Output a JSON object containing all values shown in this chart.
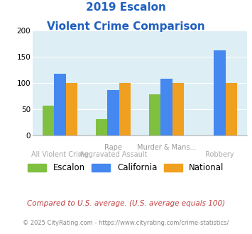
{
  "title_line1": "2019 Escalon",
  "title_line2": "Violent Crime Comparison",
  "top_labels": [
    "",
    "Rape",
    "Murder & Mans...",
    ""
  ],
  "bot_labels": [
    "All Violent Crime",
    "Aggravated Assault",
    "",
    "Robbery"
  ],
  "escalon": [
    57,
    32,
    78,
    0
  ],
  "california": [
    118,
    87,
    108,
    162
  ],
  "national": [
    100,
    100,
    100,
    100
  ],
  "escalon_color": "#80c040",
  "california_color": "#4488f0",
  "national_color": "#f0a020",
  "ylim": [
    0,
    200
  ],
  "yticks": [
    0,
    50,
    100,
    150,
    200
  ],
  "plot_bg": "#ddeef5",
  "title_color": "#2060c0",
  "footnote1": "Compared to U.S. average. (U.S. average equals 100)",
  "footnote2": "© 2025 CityRating.com - https://www.cityrating.com/crime-statistics/",
  "footnote1_color": "#c04040",
  "footnote2_color": "#888888",
  "legend_labels": [
    "Escalon",
    "California",
    "National"
  ],
  "top_label_color": "#999999",
  "bot_label_color": "#aaaaaa"
}
